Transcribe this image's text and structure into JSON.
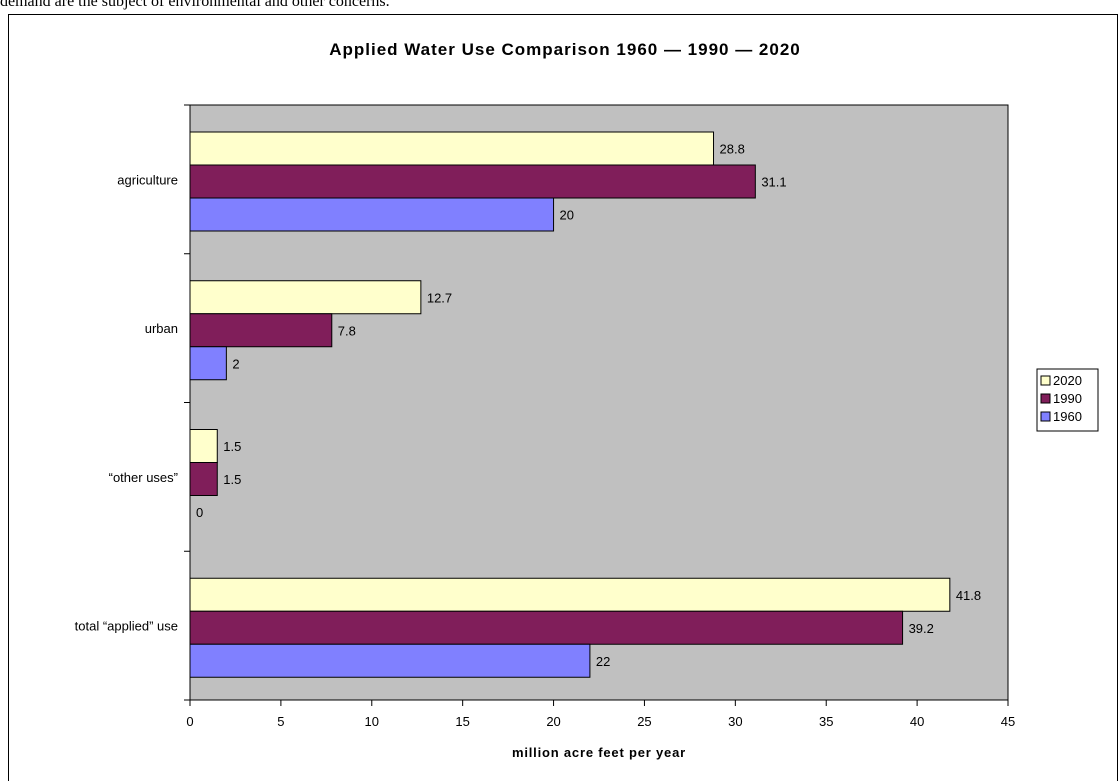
{
  "intro_text": "demand are the subject of environmental and other concerns.",
  "chart_data": {
    "type": "bar",
    "orientation": "horizontal",
    "title": "Applied Water Use Comparison  1960 — 1990 — 2020",
    "xlabel": "million acre feet per year",
    "ylabel": "",
    "xlim": [
      0,
      45
    ],
    "x_ticks": [
      "0",
      "5",
      "10",
      "15",
      "20",
      "25",
      "30",
      "35",
      "40",
      "45"
    ],
    "categories": [
      "agriculture",
      "urban",
      "“other uses”",
      "total “applied” use"
    ],
    "series": [
      {
        "name": "2020",
        "color": "#ffffcc",
        "values": [
          28.8,
          12.7,
          1.5,
          41.8
        ],
        "labels": [
          "28.8",
          "12.7",
          "1.5",
          "41.8"
        ]
      },
      {
        "name": "1990",
        "color": "#801e5a",
        "values": [
          31.1,
          7.8,
          1.5,
          39.2
        ],
        "labels": [
          "31.1",
          "7.8",
          "1.5",
          "39.2"
        ]
      },
      {
        "name": "1960",
        "color": "#8080ff",
        "values": [
          20,
          2,
          0,
          22
        ],
        "labels": [
          "20",
          "2",
          "0",
          "22"
        ]
      }
    ],
    "plot_background": "#c0c0c0",
    "grid": false,
    "legend_position": "right"
  }
}
